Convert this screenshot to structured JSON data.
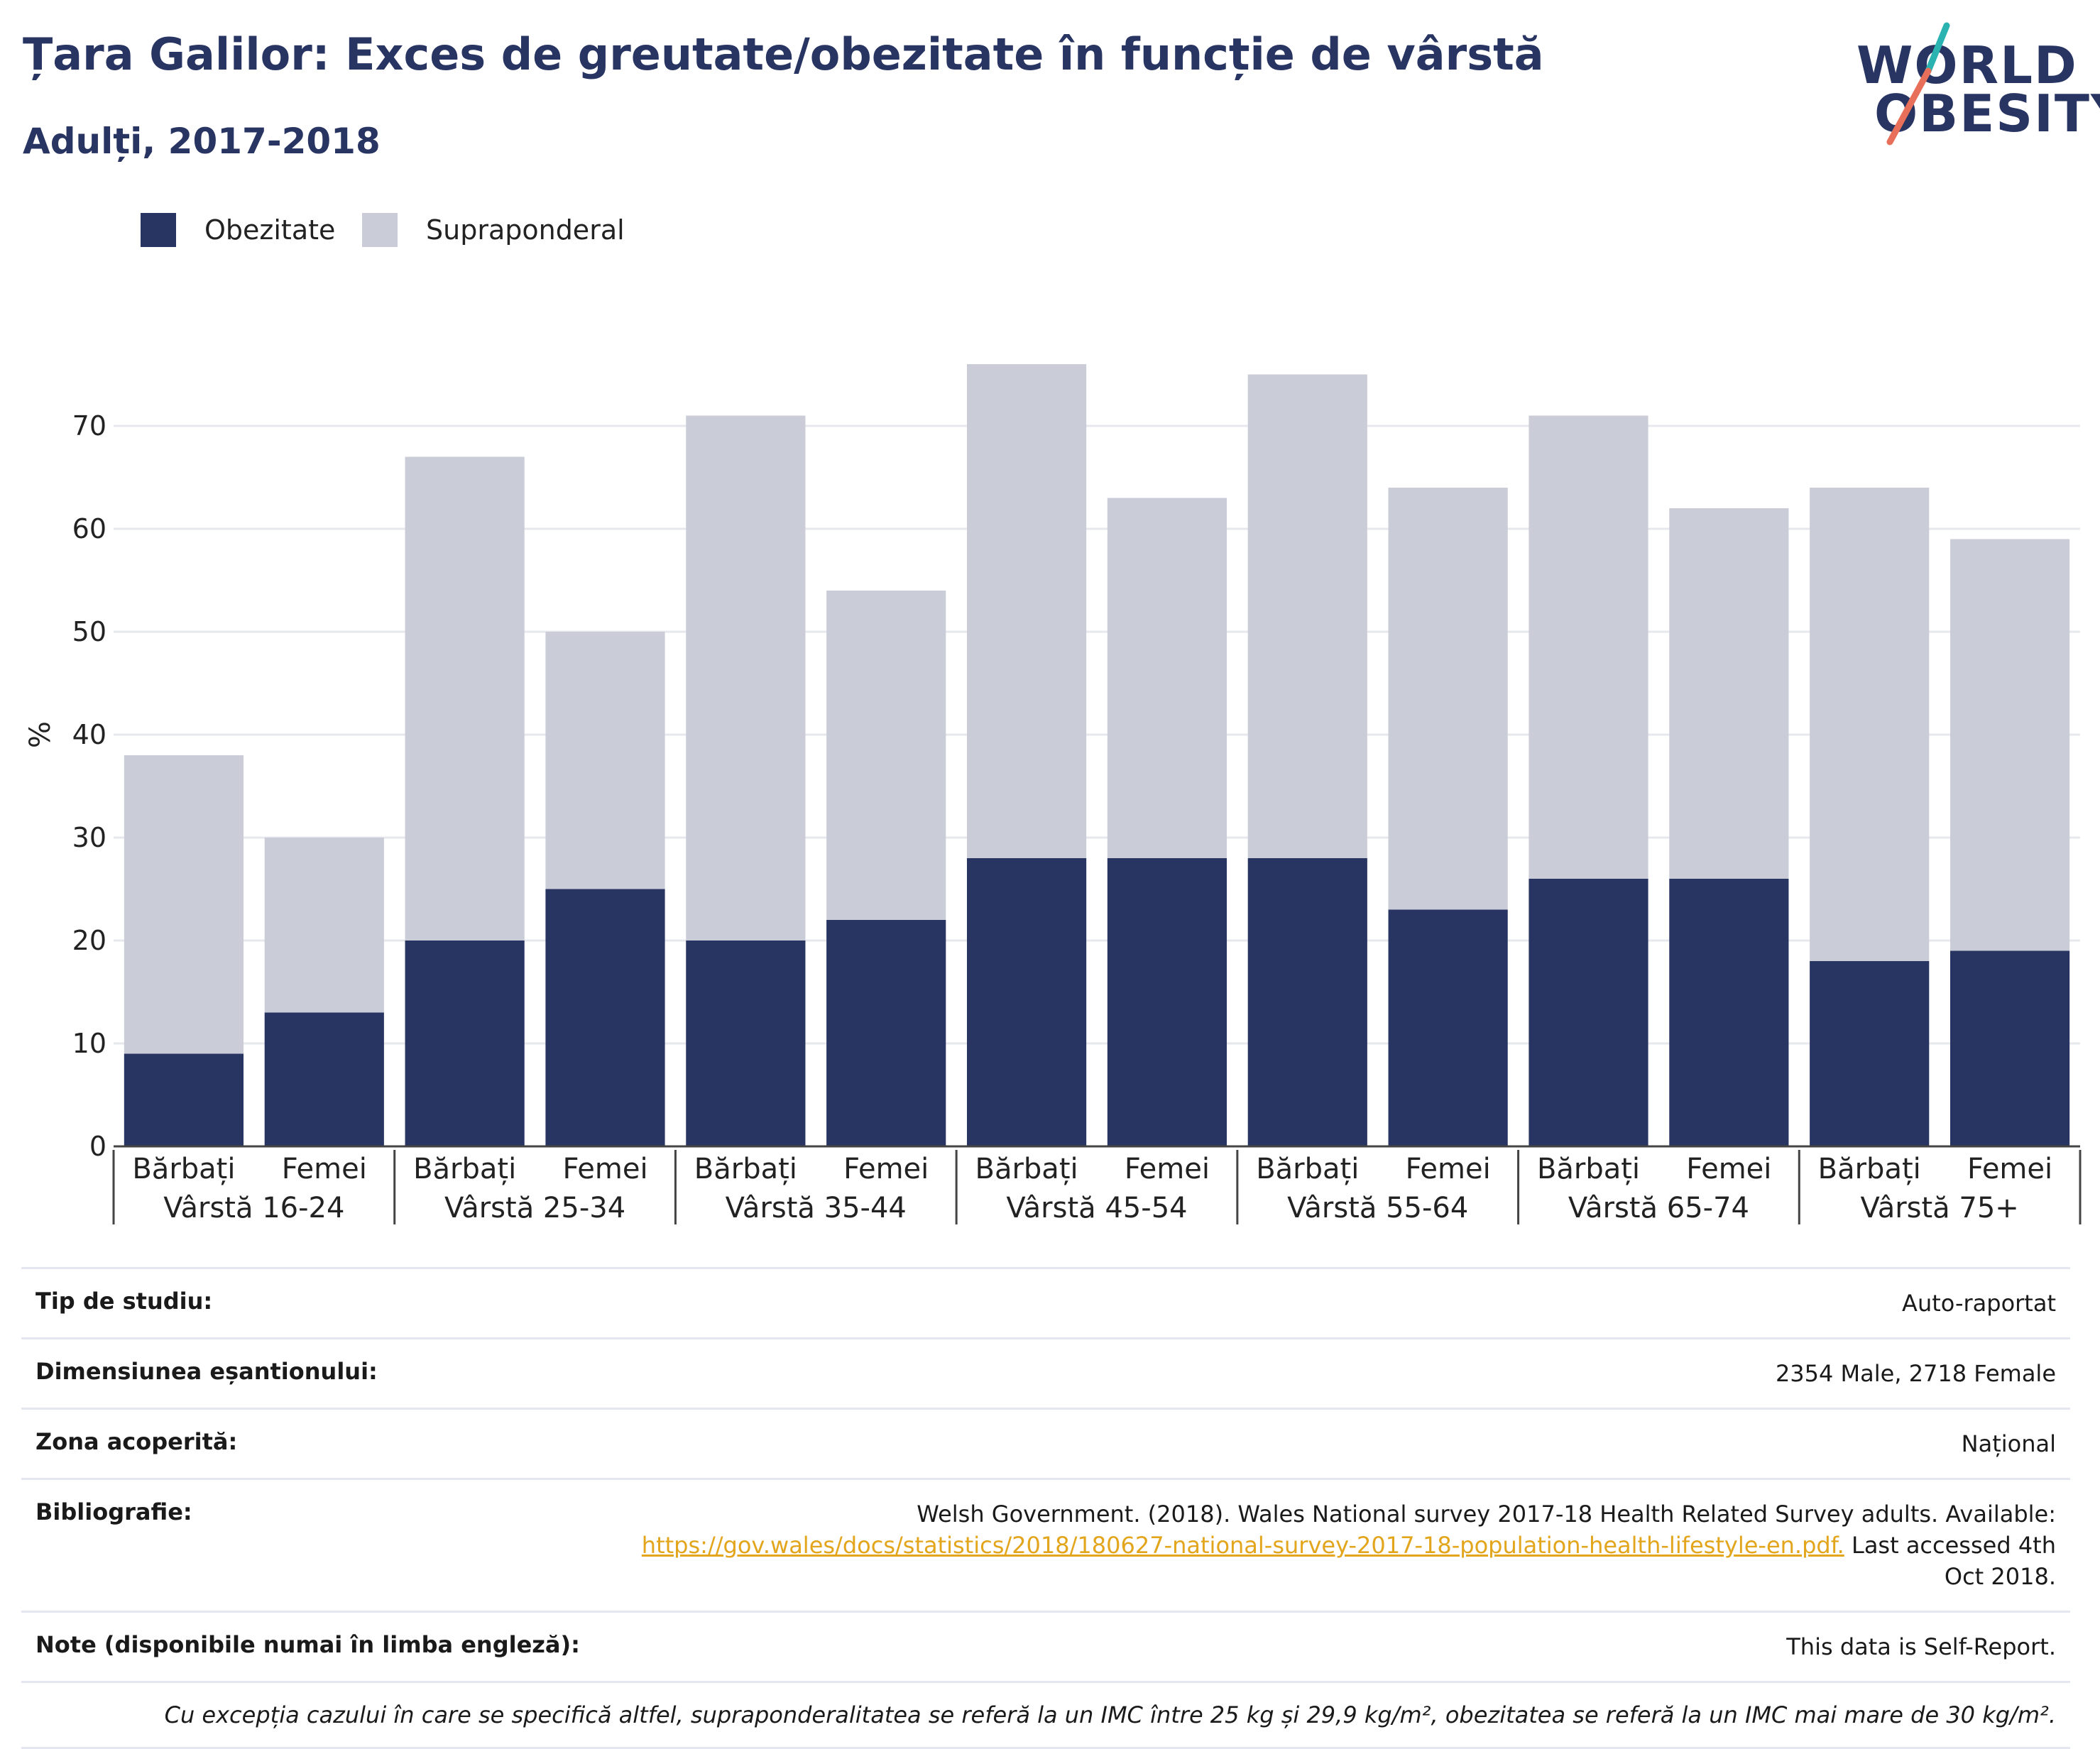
{
  "title": "Țara Galilor: Exces de greutate/obezitate în funcție de vârstă",
  "subtitle": "Adulți, 2017-2018",
  "logo": {
    "line1": "WORLD",
    "line2": "OBESITY"
  },
  "legend": [
    {
      "label": "Obezitate",
      "color": "#283462"
    },
    {
      "label": "Supraponderal",
      "color": "#cacdd8"
    }
  ],
  "chart_data": {
    "type": "bar",
    "stacked": true,
    "ylabel": "%",
    "ylim": [
      0,
      80
    ],
    "yticks": [
      0,
      10,
      20,
      30,
      40,
      50,
      60,
      70
    ],
    "grid": true,
    "groups": [
      "Vârstă 16-24",
      "Vârstă 25-34",
      "Vârstă 35-44",
      "Vârstă 45-54",
      "Vârstă 55-64",
      "Vârstă 65-74",
      "Vârstă 75+"
    ],
    "subcategories": [
      "Bărbați",
      "Femei"
    ],
    "series": [
      {
        "name": "Obezitate",
        "color": "#283462",
        "values": [
          9,
          13,
          20,
          25,
          20,
          22,
          28,
          28,
          28,
          23,
          26,
          26,
          18,
          19
        ]
      },
      {
        "name": "Supraponderal",
        "color": "#cacdd8",
        "values": [
          29,
          17,
          47,
          25,
          51,
          32,
          48,
          35,
          47,
          41,
          45,
          36,
          46,
          40
        ]
      }
    ]
  },
  "info": {
    "rows": [
      {
        "label": "Tip de studiu:",
        "value": "Auto-raportat"
      },
      {
        "label": "Dimensiunea eșantionului:",
        "value": "2354 Male, 2718 Female"
      },
      {
        "label": "Zona acoperită:",
        "value": "Național"
      }
    ],
    "bibliography": {
      "label": "Bibliografie:",
      "before": "Welsh Government. (2018). Wales National survey 2017-18 Health Related Survey adults. Available:",
      "link": "https://gov.wales/docs/statistics/2018/180627-national-survey-2017-18-population-health-lifestyle-en.pdf.",
      "after": "Last accessed 4th Oct 2018."
    },
    "notes": {
      "label": "Note (disponibile numai în limba engleză):",
      "value": "This data is Self-Report."
    },
    "footnote": "Cu excepția cazului în care se specifică altfel, supraponderalitatea se referă la un IMC între 25 kg și 29,9 kg/m², obezitatea se referă la un IMC mai mare de 30 kg/m²."
  }
}
